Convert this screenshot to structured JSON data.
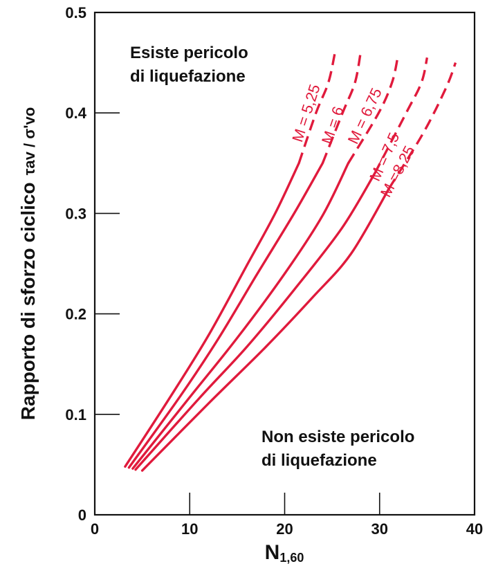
{
  "chart_data": {
    "type": "line",
    "xlabel": "N",
    "xlabel_sub": "1,60",
    "ylabel": "Rapporto di sforzo ciclico",
    "ylabel_symbol": "τav / σ'vo",
    "xlim": [
      0,
      40
    ],
    "ylim": [
      0,
      0.5
    ],
    "x_ticks": [
      0,
      10,
      20,
      30,
      40
    ],
    "x_tick_labels": [
      "0",
      "10",
      "20",
      "30",
      "40"
    ],
    "y_ticks": [
      0,
      0.1,
      0.2,
      0.3,
      0.4,
      0.5
    ],
    "y_tick_labels": [
      "0",
      "0.1",
      "0.2",
      "0.3",
      "0.4",
      "0.5"
    ],
    "grid": false,
    "line_color": "#e01a3c",
    "annotations": [
      {
        "id": "upper",
        "lines": [
          "Esiste pericolo",
          "di liquefazione"
        ]
      },
      {
        "id": "lower",
        "lines": [
          "Non esiste pericolo",
          "di liquefazione"
        ]
      }
    ],
    "series": [
      {
        "name": "M = 5,25",
        "solid": [
          [
            3.2,
            0.048
          ],
          [
            8,
            0.118
          ],
          [
            12,
            0.179
          ],
          [
            16,
            0.248
          ],
          [
            19,
            0.3
          ],
          [
            21.5,
            0.35
          ]
        ],
        "dashed": [
          [
            21.5,
            0.35
          ],
          [
            23.3,
            0.4
          ],
          [
            24.6,
            0.43
          ],
          [
            25.3,
            0.46
          ]
        ]
      },
      {
        "name": "M = 6",
        "solid": [
          [
            3.6,
            0.047
          ],
          [
            9,
            0.118
          ],
          [
            13,
            0.175
          ],
          [
            17,
            0.238
          ],
          [
            21,
            0.3
          ],
          [
            24,
            0.35
          ]
        ],
        "dashed": [
          [
            24,
            0.35
          ],
          [
            26.1,
            0.4
          ],
          [
            27.4,
            0.43
          ],
          [
            28.0,
            0.46
          ]
        ]
      },
      {
        "name": "M = 6,75",
        "solid": [
          [
            4.0,
            0.046
          ],
          [
            10,
            0.117
          ],
          [
            15,
            0.176
          ],
          [
            20,
            0.24
          ],
          [
            24,
            0.298
          ],
          [
            26.7,
            0.35
          ]
        ],
        "dashed": [
          [
            26.7,
            0.35
          ],
          [
            29.9,
            0.4
          ],
          [
            31.3,
            0.43
          ],
          [
            31.9,
            0.455
          ]
        ]
      },
      {
        "name": "M = 7,5",
        "solid": [
          [
            4.3,
            0.045
          ],
          [
            11,
            0.116
          ],
          [
            16,
            0.167
          ],
          [
            21,
            0.224
          ],
          [
            26,
            0.285
          ],
          [
            29.5,
            0.34
          ]
        ],
        "dashed": [
          [
            29.5,
            0.34
          ],
          [
            32.8,
            0.4
          ],
          [
            34.4,
            0.43
          ],
          [
            35.0,
            0.455
          ]
        ]
      },
      {
        "name": "M =8,25",
        "solid": [
          [
            5.0,
            0.044
          ],
          [
            12,
            0.111
          ],
          [
            18,
            0.167
          ],
          [
            23,
            0.217
          ],
          [
            27,
            0.26
          ],
          [
            31,
            0.325
          ]
        ],
        "dashed": [
          [
            31,
            0.325
          ],
          [
            34.6,
            0.38
          ],
          [
            37.0,
            0.425
          ],
          [
            38.0,
            0.45
          ]
        ]
      }
    ],
    "series_label_positions": [
      {
        "x": 21.8,
        "y": 0.37
      },
      {
        "x": 24.9,
        "y": 0.368
      },
      {
        "x": 27.6,
        "y": 0.368
      },
      {
        "x": 29.9,
        "y": 0.331
      },
      {
        "x": 31.0,
        "y": 0.315
      }
    ]
  }
}
